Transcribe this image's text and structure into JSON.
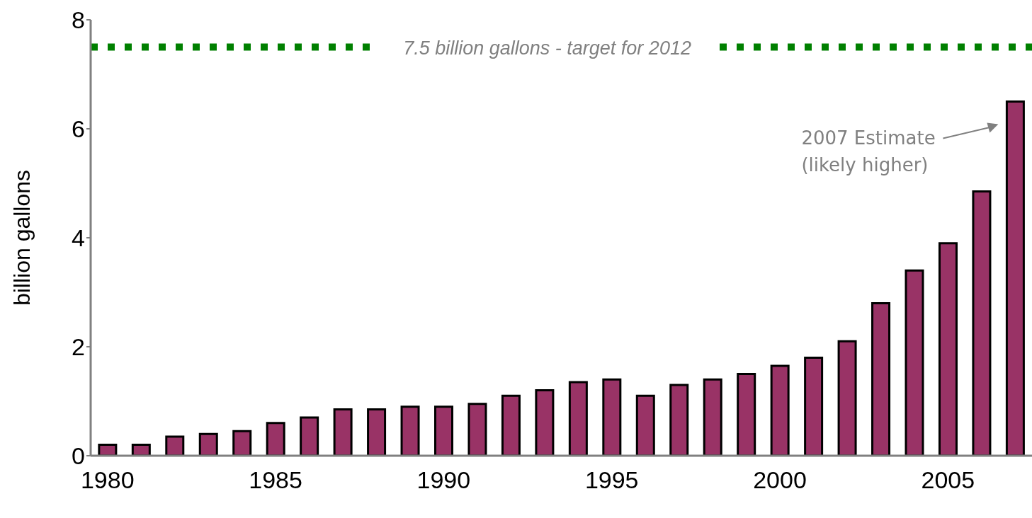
{
  "chart_data": {
    "type": "bar",
    "ylabel": "billion gallons",
    "categories": [
      "1980",
      null,
      null,
      null,
      null,
      "1985",
      null,
      null,
      null,
      null,
      "1990",
      null,
      null,
      null,
      null,
      "1995",
      null,
      null,
      null,
      null,
      "2000",
      null,
      null,
      null,
      null,
      "2005",
      null,
      null
    ],
    "values": [
      0.2,
      0.2,
      0.35,
      0.4,
      0.45,
      0.6,
      0.7,
      0.85,
      0.85,
      0.9,
      0.9,
      0.95,
      1.1,
      1.2,
      1.35,
      1.4,
      1.1,
      1.3,
      1.4,
      1.5,
      1.65,
      1.8,
      2.1,
      2.8,
      3.4,
      3.9,
      4.85,
      6.5
    ],
    "color": "#993366",
    "ylim": [
      0,
      8
    ],
    "yticks": [
      0,
      2,
      4,
      6,
      8
    ],
    "grid": false,
    "legend": false,
    "ref_lines": [
      {
        "axis": "y",
        "value": 7.5,
        "label": "7.5 billion gallons - target for 2012",
        "color": "#008000",
        "line_style": "dotted"
      }
    ],
    "annotations": [
      "2007 Estimate\n(likely higher)"
    ]
  }
}
